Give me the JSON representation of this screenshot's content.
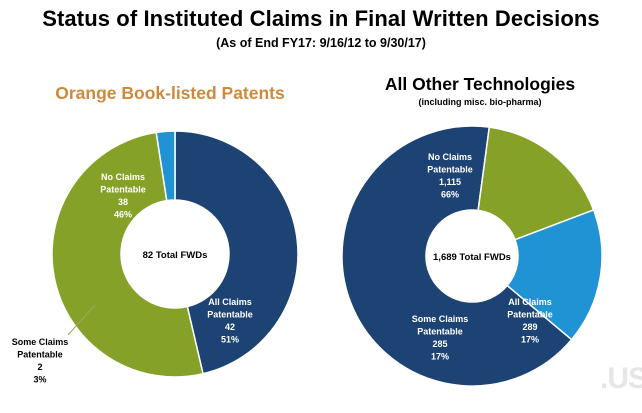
{
  "title": "Status of Instituted Claims in Final Written Decisions",
  "subtitle": "(As of End FY17: 9/16/12 to 9/30/17)",
  "colors": {
    "no_claims": "#1c4373",
    "all_claims": "#86a128",
    "some_claims": "#1f93d4",
    "orange_title": "#cc8a3c"
  },
  "chart_data": [
    {
      "type": "pie",
      "title": "Orange Book-listed Patents",
      "subtitle": "",
      "center_label": "82 Total FWDs",
      "slices": [
        {
          "name": "No Claims Patentable",
          "count": "38",
          "percent": "46%",
          "value": 38,
          "color": "#1c4373"
        },
        {
          "name": "All Claims Patentable",
          "count": "42",
          "percent": "51%",
          "value": 42,
          "color": "#86a128"
        },
        {
          "name": "Some Claims Patentable",
          "count": "2",
          "percent": "3%",
          "value": 2,
          "color": "#1f93d4"
        }
      ]
    },
    {
      "type": "pie",
      "title": "All Other Technologies",
      "subtitle": "(including misc. bio-pharma)",
      "center_label": "1,689 Total FWDs",
      "slices": [
        {
          "name": "No Claims Patentable",
          "count": "1,115",
          "percent": "66%",
          "value": 1115,
          "color": "#1c4373"
        },
        {
          "name": "All Claims Patentable",
          "count": "289",
          "percent": "17%",
          "value": 289,
          "color": "#86a128"
        },
        {
          "name": "Some Claims Patentable",
          "count": "285",
          "percent": "17%",
          "value": 285,
          "color": "#1f93d4"
        }
      ]
    }
  ]
}
